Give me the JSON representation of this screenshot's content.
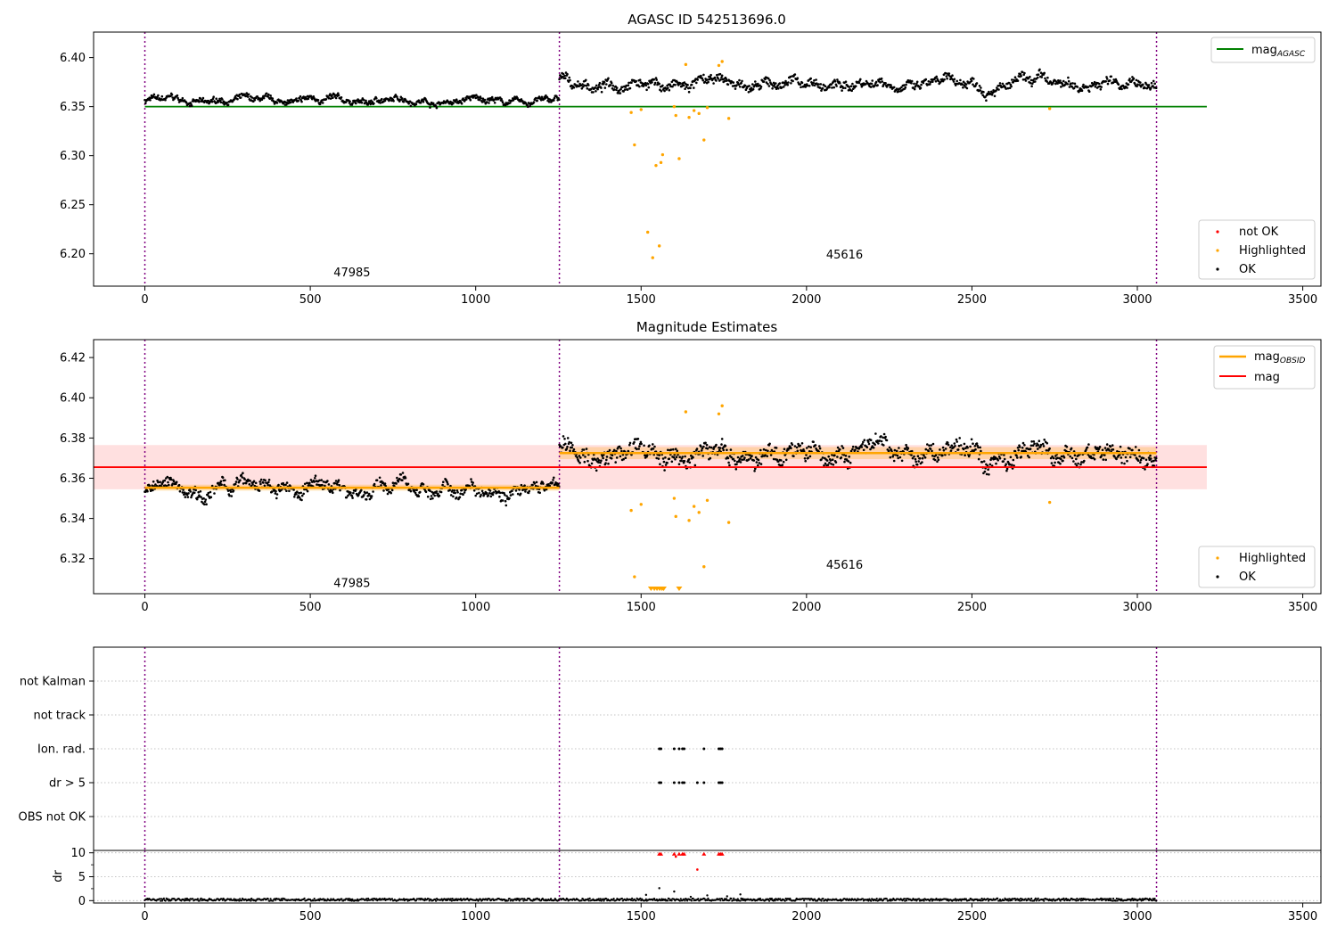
{
  "chart_data": [
    {
      "type": "scatter",
      "title": "AGASC ID 542513696.0",
      "xlabel": "",
      "ylabel": "",
      "xlim": [
        -155,
        3555
      ],
      "ylim": [
        6.167,
        6.426
      ],
      "x_ticks": [
        0,
        500,
        1000,
        1500,
        2000,
        2500,
        3000,
        3500
      ],
      "y_ticks": [
        6.2,
        6.25,
        6.3,
        6.35,
        6.4
      ],
      "y_tick_labels": [
        "6.20",
        "6.25",
        "6.30",
        "6.35",
        "6.40"
      ],
      "x_tick_labels": [
        "0",
        "500",
        "1000",
        "1500",
        "2000",
        "2500",
        "3000",
        "3500"
      ],
      "vlines": [
        0,
        1253,
        3058
      ],
      "obsid_labels": [
        {
          "text": "47985",
          "x": 626,
          "y": 6.177
        },
        {
          "text": "45616",
          "x": 2115,
          "y": 6.195
        }
      ],
      "hline": {
        "name": "mag_AGASC",
        "value": 6.35,
        "x0": 0,
        "x1": 3210,
        "color": "#008000"
      },
      "legend_top": {
        "label": "mag",
        "subscript": "AGASC",
        "color": "#008000"
      },
      "legend_bottom": [
        {
          "label": "not OK",
          "color": "#ff0000"
        },
        {
          "label": "Highlighted",
          "color": "#ffa500"
        },
        {
          "label": "OK",
          "color": "#000000"
        }
      ],
      "ok_segments": [
        {
          "x0": 0,
          "x1": 1253,
          "center": 6.356,
          "amp": 0.008
        },
        {
          "x0": 1253,
          "x1": 3058,
          "center": 6.373,
          "amp": 0.013
        }
      ],
      "highlighted": [
        [
          1470,
          6.344
        ],
        [
          1480,
          6.311
        ],
        [
          1500,
          6.347
        ],
        [
          1520,
          6.222
        ],
        [
          1535,
          6.196
        ],
        [
          1545,
          6.29
        ],
        [
          1555,
          6.208
        ],
        [
          1560,
          6.293
        ],
        [
          1565,
          6.301
        ],
        [
          1600,
          6.35
        ],
        [
          1605,
          6.341
        ],
        [
          1615,
          6.297
        ],
        [
          1635,
          6.393
        ],
        [
          1645,
          6.339
        ],
        [
          1660,
          6.346
        ],
        [
          1675,
          6.343
        ],
        [
          1690,
          6.316
        ],
        [
          1700,
          6.349
        ],
        [
          1735,
          6.392
        ],
        [
          1745,
          6.396
        ],
        [
          1765,
          6.338
        ],
        [
          2735,
          6.348
        ]
      ]
    },
    {
      "type": "scatter",
      "title": "Magnitude Estimates",
      "xlabel": "",
      "ylabel": "",
      "xlim": [
        -155,
        3555
      ],
      "ylim": [
        6.3026,
        6.4289
      ],
      "x_ticks": [
        0,
        500,
        1000,
        1500,
        2000,
        2500,
        3000,
        3500
      ],
      "y_ticks": [
        6.32,
        6.34,
        6.36,
        6.38,
        6.4,
        6.42
      ],
      "y_tick_labels": [
        "6.32",
        "6.34",
        "6.36",
        "6.38",
        "6.40",
        "6.42"
      ],
      "x_tick_labels": [
        "0",
        "500",
        "1000",
        "1500",
        "2000",
        "2500",
        "3000",
        "3500"
      ],
      "vlines": [
        0,
        1253,
        3058
      ],
      "obsid_labels": [
        {
          "text": "47985",
          "x": 626,
          "y": 6.306
        },
        {
          "text": "45616",
          "x": 2115,
          "y": 6.315
        }
      ],
      "mag_line": {
        "name": "mag",
        "value": 6.3655,
        "x0": -155,
        "x1": 3210,
        "band": [
          6.3545,
          6.3765
        ],
        "color": "#ff0000"
      },
      "mag_obsid": [
        {
          "x0": 0,
          "x1": 1253,
          "value": 6.3553,
          "band": [
            6.3538,
            6.3568
          ]
        },
        {
          "x0": 1253,
          "x1": 3058,
          "value": 6.3725,
          "band": [
            6.3695,
            6.3755
          ]
        }
      ],
      "legend_top": [
        {
          "label": "mag",
          "subscript": "OBSID",
          "color": "#ffa500"
        },
        {
          "label": "mag",
          "subscript": "",
          "color": "#ff0000"
        }
      ],
      "legend_bottom": [
        {
          "label": "Highlighted",
          "color": "#ffa500"
        },
        {
          "label": "OK",
          "color": "#000000"
        }
      ],
      "ok_segments": [
        {
          "x0": 0,
          "x1": 1253,
          "center": 6.355,
          "amp": 0.0085
        },
        {
          "x0": 1253,
          "x1": 3058,
          "center": 6.372,
          "amp": 0.012
        }
      ],
      "highlighted": [
        [
          1470,
          6.344
        ],
        [
          1500,
          6.347
        ],
        [
          1600,
          6.35
        ],
        [
          1605,
          6.341
        ],
        [
          1635,
          6.393
        ],
        [
          1645,
          6.339
        ],
        [
          1660,
          6.346
        ],
        [
          1675,
          6.343
        ],
        [
          1690,
          6.316
        ],
        [
          1700,
          6.349
        ],
        [
          1735,
          6.392
        ],
        [
          1745,
          6.396
        ],
        [
          1765,
          6.338
        ],
        [
          2735,
          6.348
        ],
        [
          1480,
          6.311
        ]
      ],
      "clipped_markers": [
        1530,
        1540,
        1548,
        1556,
        1563,
        1568,
        1615
      ]
    },
    {
      "type": "scatter",
      "title": "",
      "xlim": [
        -155,
        3555
      ],
      "categories": [
        "not Kalman",
        "not track",
        "Ion. rad.",
        "dr > 5",
        "OBS not OK"
      ],
      "vlines": [
        0,
        1253,
        3058
      ],
      "flags": {
        "Ion. rad.": [
          1555,
          1560,
          1600,
          1615,
          1625,
          1630,
          1690,
          1735,
          1740,
          1745
        ],
        "dr > 5": [
          1555,
          1560,
          1600,
          1615,
          1625,
          1630,
          1670,
          1690,
          1735,
          1740,
          1745
        ]
      }
    },
    {
      "type": "scatter",
      "title": "",
      "xlabel": "",
      "ylabel": "dr",
      "xlim": [
        -155,
        3555
      ],
      "ylim": [
        -0.5,
        10.5
      ],
      "y_ticks": [
        0,
        5,
        10
      ],
      "y_tick_labels": [
        "0",
        "5",
        "10"
      ],
      "x_ticks": [
        0,
        500,
        1000,
        1500,
        2000,
        2500,
        3000,
        3500
      ],
      "x_tick_labels": [
        "0",
        "500",
        "1000",
        "1500",
        "2000",
        "2500",
        "3000",
        "3500"
      ],
      "vlines": [
        0,
        1253,
        3058
      ],
      "baseline": {
        "x0": 0,
        "x1": 3058,
        "level": 0.2,
        "amp": 0.25
      },
      "spikes": [
        [
          1515,
          1.2
        ],
        [
          1555,
          2.6
        ],
        [
          1600,
          1.9
        ],
        [
          1650,
          0.8
        ],
        [
          1700,
          1.1
        ],
        [
          1800,
          1.3
        ],
        [
          1760,
          0.9
        ]
      ],
      "capped": [
        [
          1555,
          9.8
        ],
        [
          1560,
          9.8
        ],
        [
          1600,
          9.8
        ],
        [
          1615,
          9.8
        ],
        [
          1625,
          9.8
        ],
        [
          1630,
          9.8
        ],
        [
          1690,
          9.8
        ],
        [
          1735,
          9.8
        ],
        [
          1740,
          9.8
        ],
        [
          1745,
          9.8
        ]
      ],
      "red_points": [
        [
          1670,
          6.5
        ],
        [
          1605,
          9.2
        ]
      ]
    }
  ]
}
